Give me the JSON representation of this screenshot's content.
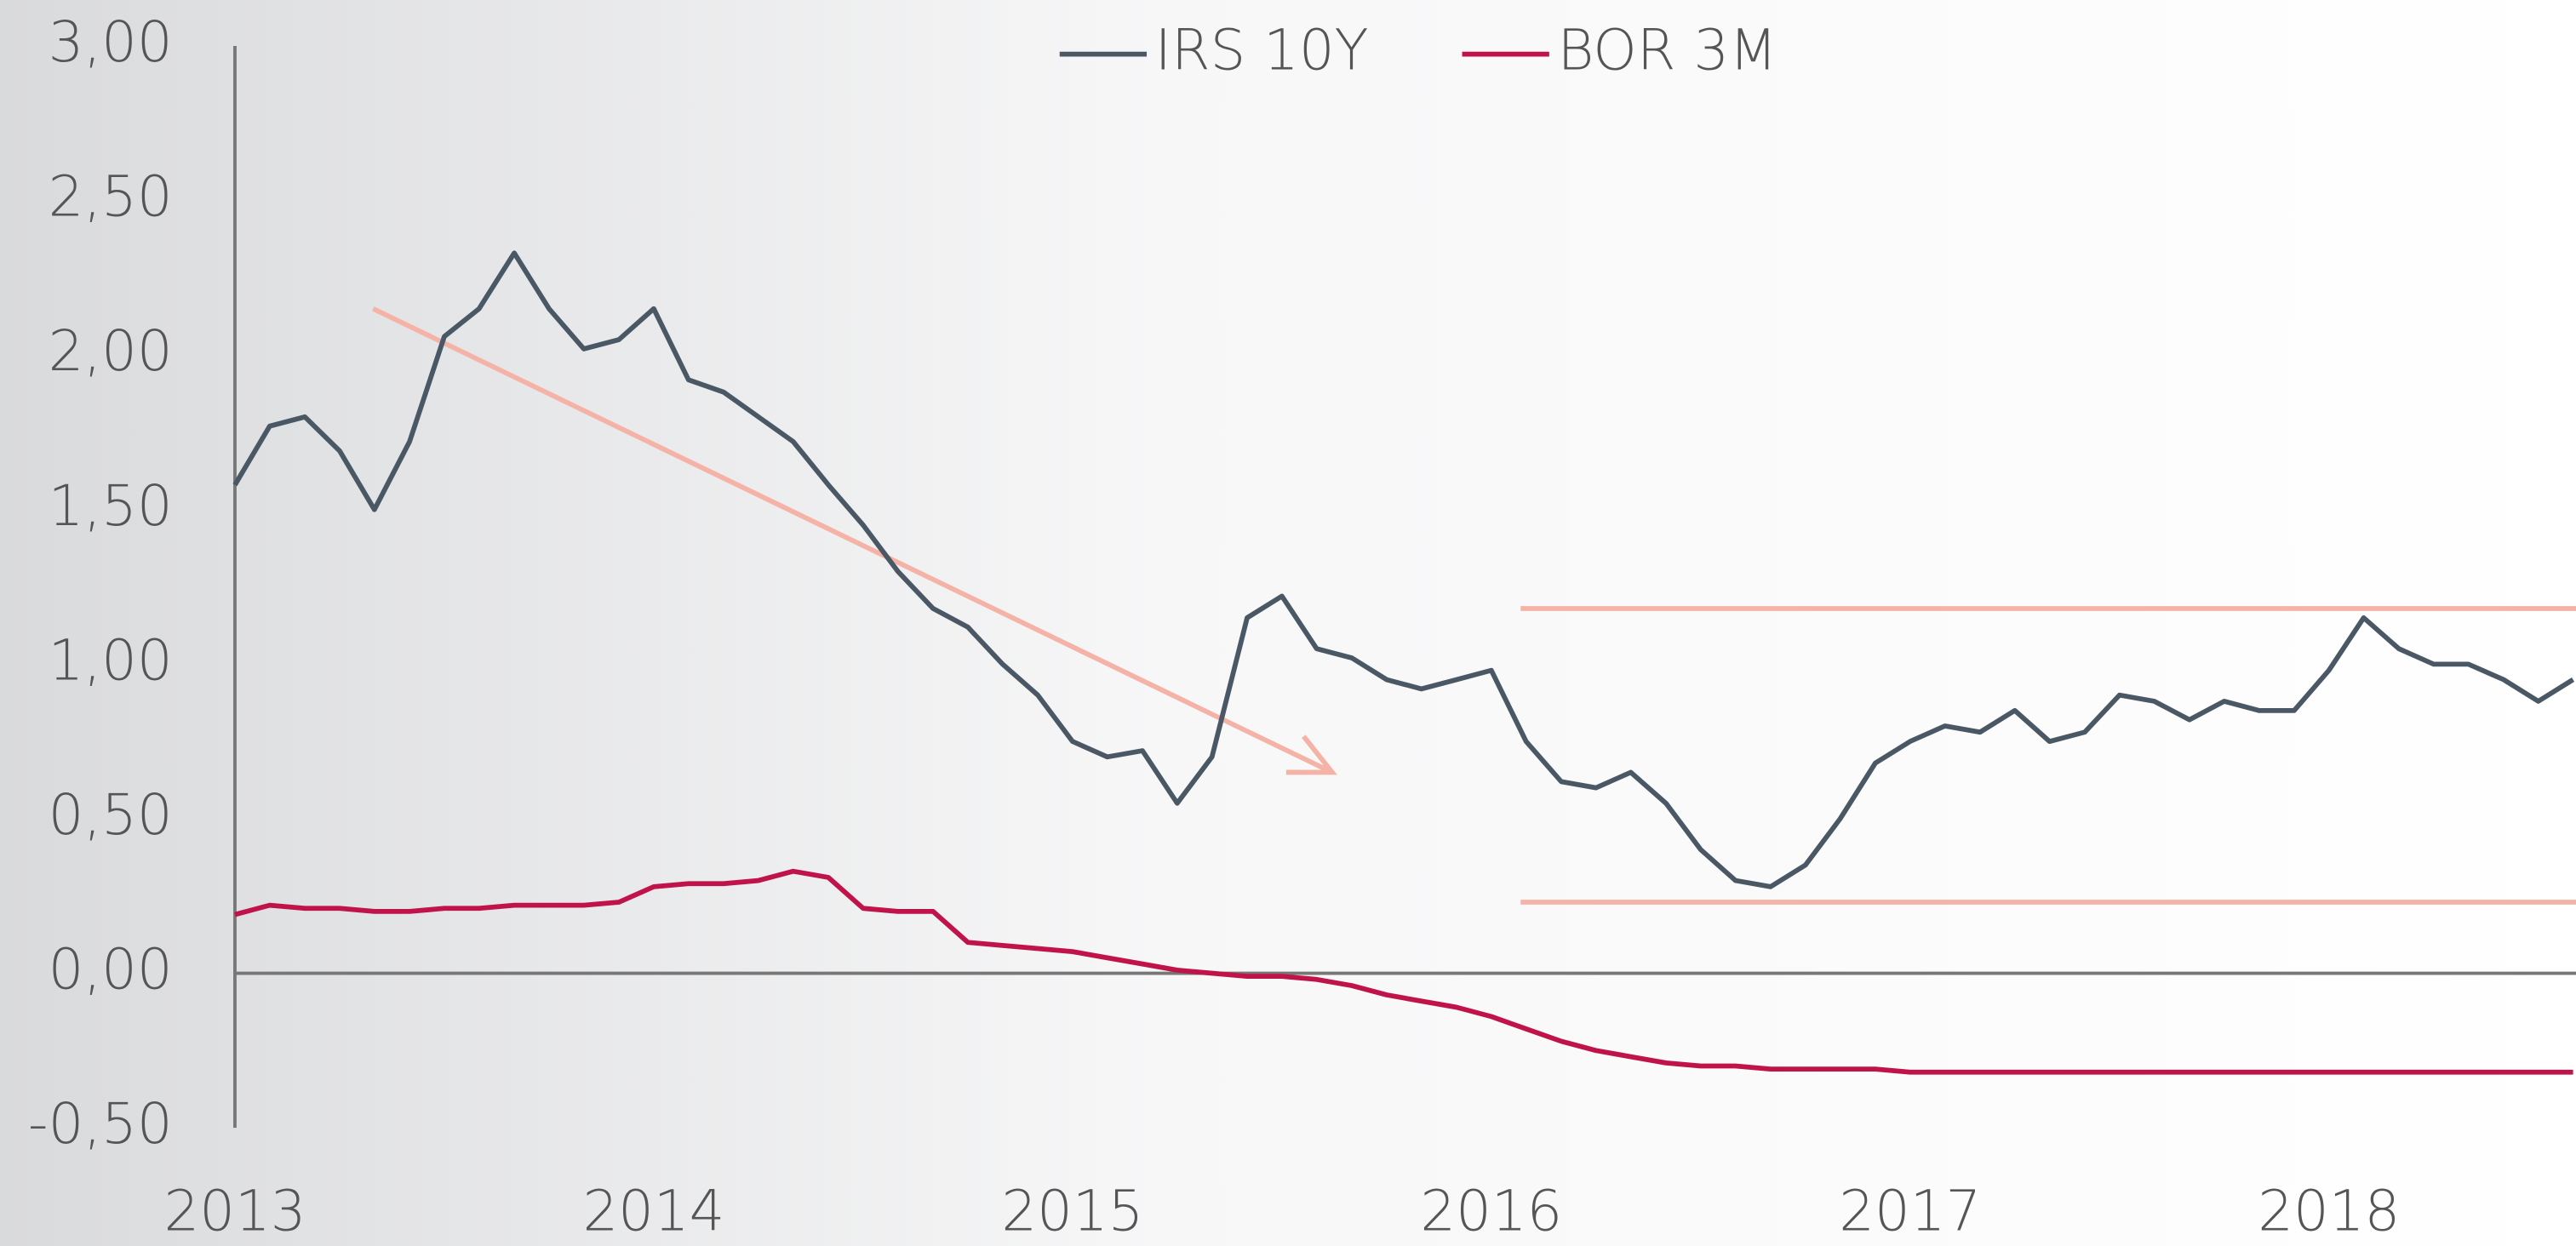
{
  "chart_data": {
    "type": "line",
    "x": [
      2013,
      2013.083,
      2013.167,
      2013.25,
      2013.333,
      2013.417,
      2013.5,
      2013.583,
      2013.667,
      2013.75,
      2013.833,
      2013.917,
      2014,
      2014.083,
      2014.167,
      2014.25,
      2014.333,
      2014.417,
      2014.5,
      2014.583,
      2014.667,
      2014.75,
      2014.833,
      2014.917,
      2015,
      2015.083,
      2015.167,
      2015.25,
      2015.333,
      2015.417,
      2015.5,
      2015.583,
      2015.667,
      2015.75,
      2015.833,
      2015.917,
      2016,
      2016.083,
      2016.167,
      2016.25,
      2016.333,
      2016.417,
      2016.5,
      2016.583,
      2016.667,
      2016.75,
      2016.833,
      2016.917,
      2017,
      2017.083,
      2017.167,
      2017.25,
      2017.333,
      2017.417,
      2017.5,
      2017.583,
      2017.667,
      2017.75,
      2017.833,
      2017.917,
      2018,
      2018.083,
      2018.167,
      2018.25,
      2018.333,
      2018.417,
      2018.5,
      2018.583
    ],
    "series": [
      {
        "name": "IRS 10Y",
        "color": "#4a5866",
        "values": [
          1.58,
          1.77,
          1.8,
          1.69,
          1.5,
          1.72,
          2.06,
          2.15,
          2.33,
          2.15,
          2.02,
          2.05,
          2.15,
          1.92,
          1.88,
          1.8,
          1.72,
          1.58,
          1.45,
          1.3,
          1.18,
          1.12,
          1.0,
          0.9,
          0.75,
          0.7,
          0.72,
          0.55,
          0.7,
          1.15,
          1.22,
          1.05,
          1.02,
          0.95,
          0.92,
          0.95,
          0.98,
          0.75,
          0.62,
          0.6,
          0.65,
          0.55,
          0.4,
          0.3,
          0.28,
          0.35,
          0.5,
          0.68,
          0.75,
          0.8,
          0.78,
          0.85,
          0.75,
          0.78,
          0.9,
          0.88,
          0.82,
          0.88,
          0.85,
          0.85,
          0.98,
          1.15,
          1.05,
          1.0,
          1.0,
          0.95,
          0.88,
          0.95
        ]
      },
      {
        "name": "BOR 3M",
        "color": "#c0134a",
        "values": [
          0.19,
          0.22,
          0.21,
          0.21,
          0.2,
          0.2,
          0.21,
          0.21,
          0.22,
          0.22,
          0.22,
          0.23,
          0.28,
          0.29,
          0.29,
          0.3,
          0.33,
          0.31,
          0.21,
          0.2,
          0.2,
          0.1,
          0.09,
          0.08,
          0.07,
          0.05,
          0.03,
          0.01,
          0.0,
          -0.01,
          -0.01,
          -0.02,
          -0.04,
          -0.07,
          -0.09,
          -0.11,
          -0.14,
          -0.18,
          -0.22,
          -0.25,
          -0.27,
          -0.29,
          -0.3,
          -0.3,
          -0.31,
          -0.31,
          -0.31,
          -0.31,
          -0.32,
          -0.32,
          -0.32,
          -0.32,
          -0.32,
          -0.32,
          -0.32,
          -0.32,
          -0.32,
          -0.32,
          -0.32,
          -0.32,
          -0.32,
          -0.32,
          -0.32,
          -0.32,
          -0.32,
          -0.32,
          -0.32,
          -0.32
        ]
      }
    ],
    "xlim": [
      2013,
      2018.59
    ],
    "xticks": [
      2013,
      2014,
      2015,
      2016,
      2017,
      2018
    ],
    "ylim": [
      -0.5,
      3
    ],
    "yticks": [
      {
        "value": -0.5,
        "label": "-0,50"
      },
      {
        "value": 0,
        "label": "0,00"
      },
      {
        "value": 0.5,
        "label": "0,50"
      },
      {
        "value": 1,
        "label": "1,00"
      },
      {
        "value": 1.5,
        "label": "1,50"
      },
      {
        "value": 2,
        "label": "2,00"
      },
      {
        "value": 2.5,
        "label": "2,50"
      },
      {
        "value": 3,
        "label": "3,00"
      }
    ],
    "grid": false,
    "legend": "top",
    "range_lines": {
      "color": "#f4b3a6",
      "x_start": 2016.07,
      "values": [
        1.18,
        0.23
      ]
    },
    "trend_arrow": {
      "color": "#f4b3a6",
      "x": [
        2013.33,
        2015.62
      ],
      "y": [
        2.15,
        0.65
      ]
    }
  }
}
